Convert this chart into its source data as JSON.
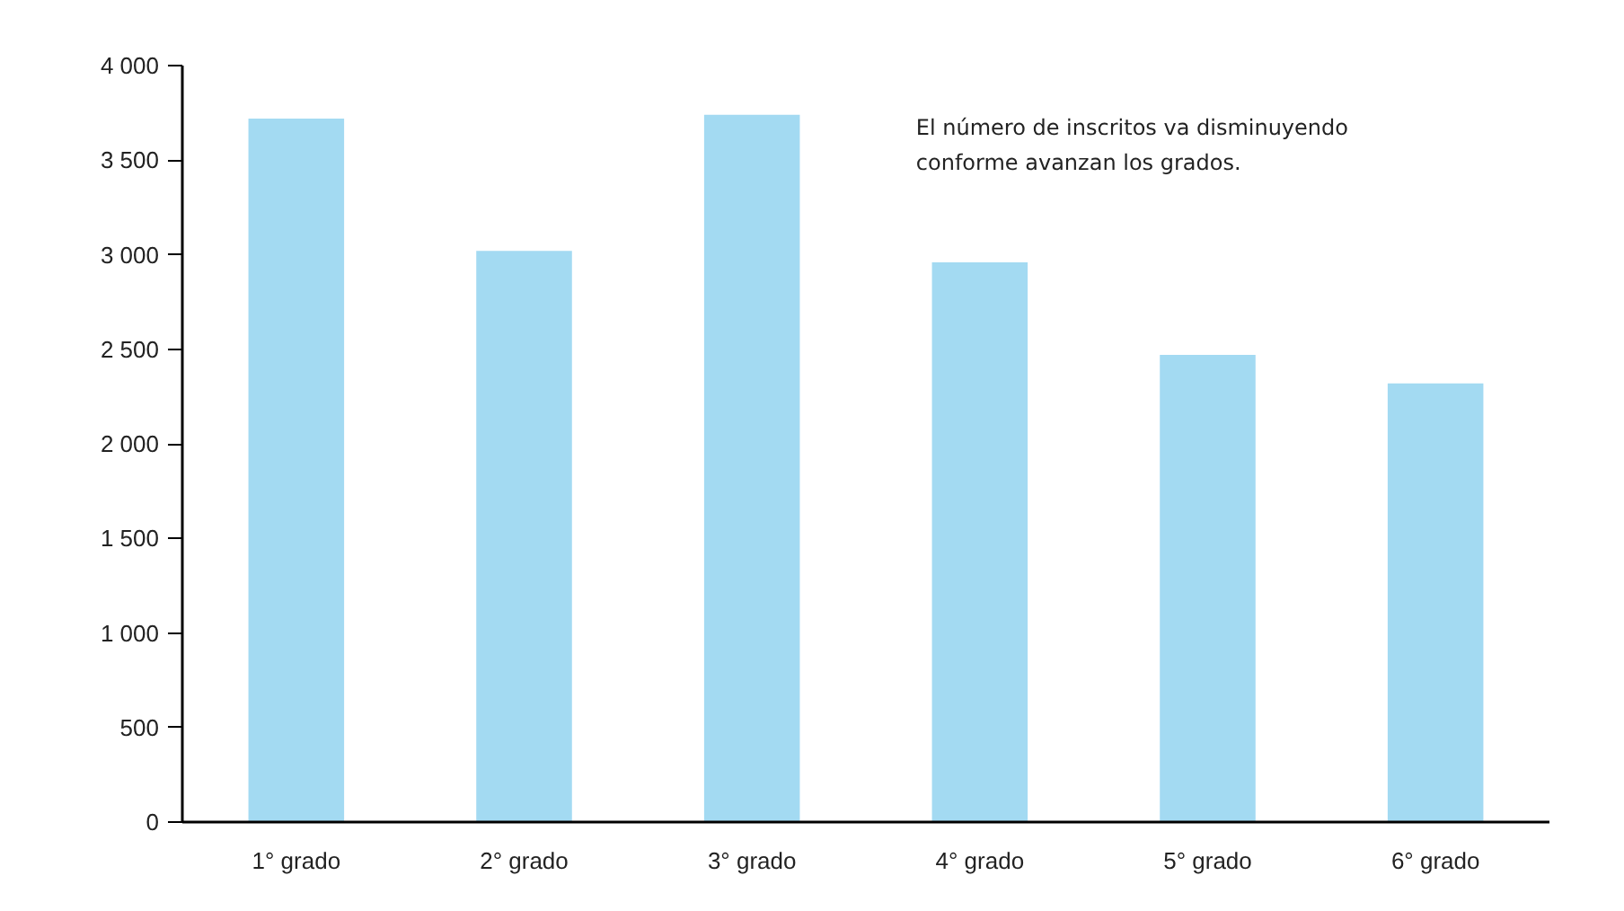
{
  "chart_data": {
    "type": "bar",
    "categories": [
      "1° grado",
      "2° grado",
      "3° grado",
      "4° grado",
      "5° grado",
      "6° grado"
    ],
    "values": [
      3720,
      3020,
      3740,
      2960,
      2470,
      2320
    ],
    "color": "#a3daf2",
    "ylim": [
      0,
      4000
    ],
    "yticks": [
      0,
      500,
      {
        "value": 1000,
        "label": "1 000"
      },
      {
        "value": 1500,
        "label": "1 500"
      },
      {
        "value": 2000,
        "label": "2 000"
      },
      {
        "value": 2500,
        "label": "2 500"
      },
      {
        "value": 3000,
        "label": "3 000"
      },
      {
        "value": 3500,
        "label": "3 500"
      },
      {
        "value": 4000,
        "label": "4 000"
      }
    ],
    "annotations": [
      "El número de inscritos va disminuyendo\nconforme avanzan los grados."
    ],
    "grid": false
  }
}
